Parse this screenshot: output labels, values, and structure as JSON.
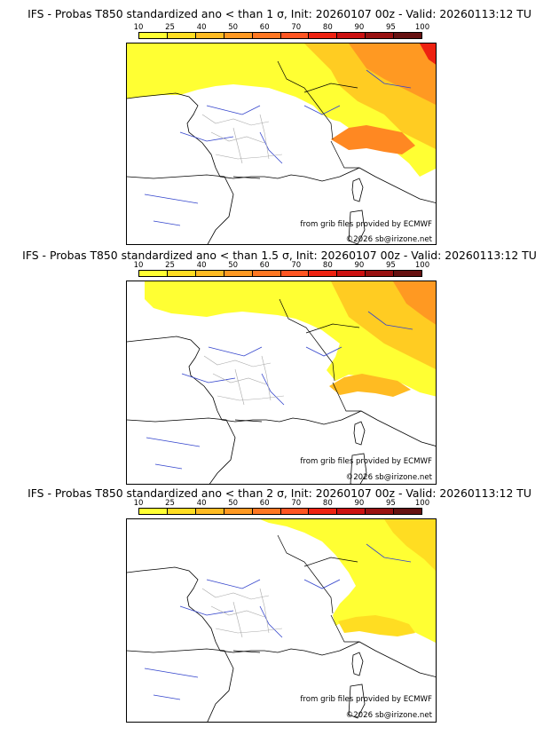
{
  "legend": {
    "labels": [
      "10",
      "25",
      "40",
      "50",
      "60",
      "70",
      "80",
      "90",
      "95",
      "100"
    ],
    "colors": [
      "#ffff33",
      "#ffdd22",
      "#ffbb22",
      "#ff9922",
      "#ff7722",
      "#ff5522",
      "#ee2211",
      "#cc1111",
      "#991111",
      "#661111"
    ]
  },
  "panels": [
    {
      "title": "IFS - Probas T850  standardized ano < than 1 σ, Init: 20260107 00z - Valid: 20260113:12 TU",
      "credit_source": "from grib files provided by ECMWF",
      "credit_copyright": "©2026 sb@irizone.net"
    },
    {
      "title": "IFS - Probas T850  standardized ano < than 1.5 σ, Init: 20260107 00z - Valid: 20260113:12 TU",
      "credit_source": "from grib files provided by ECMWF",
      "credit_copyright": "©2026 sb@irizone.net"
    },
    {
      "title": "IFS - Probas T850  standardized ano < than 2 σ, Init: 20260107 00z - Valid: 20260113:12 TU",
      "credit_source": "from grib files provided by ECMWF",
      "credit_copyright": "©2026 sb@irizone.net"
    }
  ]
}
